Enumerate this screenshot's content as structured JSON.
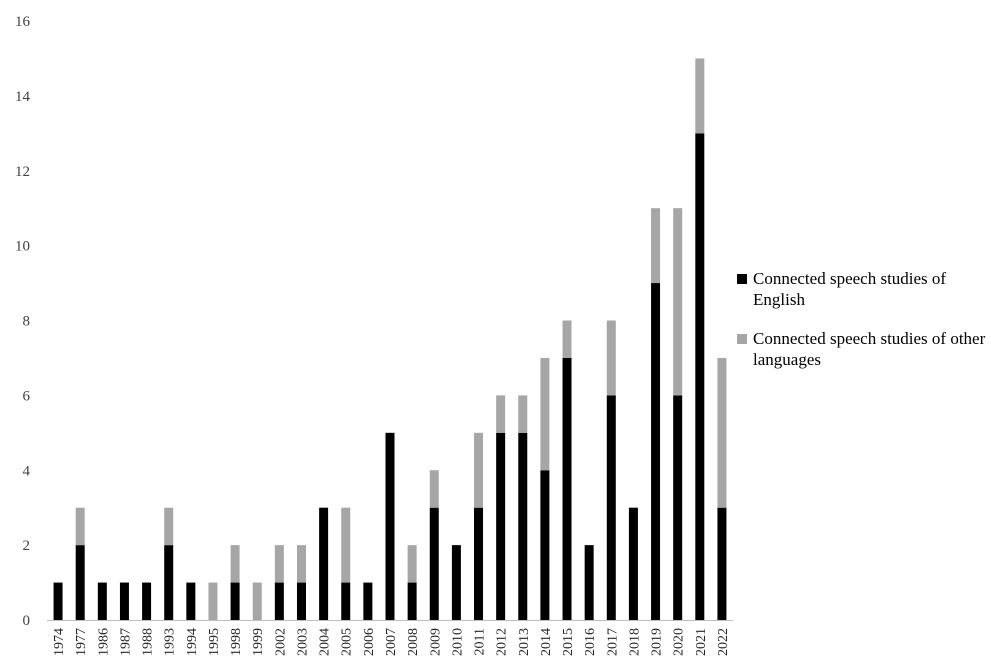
{
  "chart_data": {
    "type": "bar",
    "stacked": true,
    "categories": [
      "1974",
      "1977",
      "1986",
      "1987",
      "1988",
      "1993",
      "1994",
      "1995",
      "1998",
      "1999",
      "2002",
      "2003",
      "2004",
      "2005",
      "2006",
      "2007",
      "2008",
      "2009",
      "2010",
      "2011",
      "2012",
      "2013",
      "2014",
      "2015",
      "2016",
      "2017",
      "2018",
      "2019",
      "2020",
      "2021",
      "2022"
    ],
    "series": [
      {
        "name": "Connected speech studies of English",
        "color": "#000000",
        "values": [
          1,
          2,
          1,
          1,
          1,
          2,
          1,
          0,
          1,
          0,
          1,
          1,
          3,
          1,
          1,
          5,
          1,
          3,
          2,
          3,
          5,
          5,
          4,
          7,
          2,
          6,
          3,
          9,
          6,
          13,
          3
        ]
      },
      {
        "name": "Connected speech studies of other languages",
        "color": "#a6a6a6",
        "values": [
          0,
          1,
          0,
          0,
          0,
          1,
          0,
          1,
          1,
          1,
          1,
          1,
          0,
          2,
          0,
          0,
          1,
          1,
          0,
          2,
          1,
          1,
          3,
          1,
          0,
          2,
          0,
          2,
          5,
          2,
          4
        ]
      }
    ],
    "ylim": [
      0,
      16
    ],
    "yticks": [
      0,
      2,
      4,
      6,
      8,
      10,
      12,
      14,
      16
    ],
    "grid": false,
    "legend_position": "right"
  }
}
